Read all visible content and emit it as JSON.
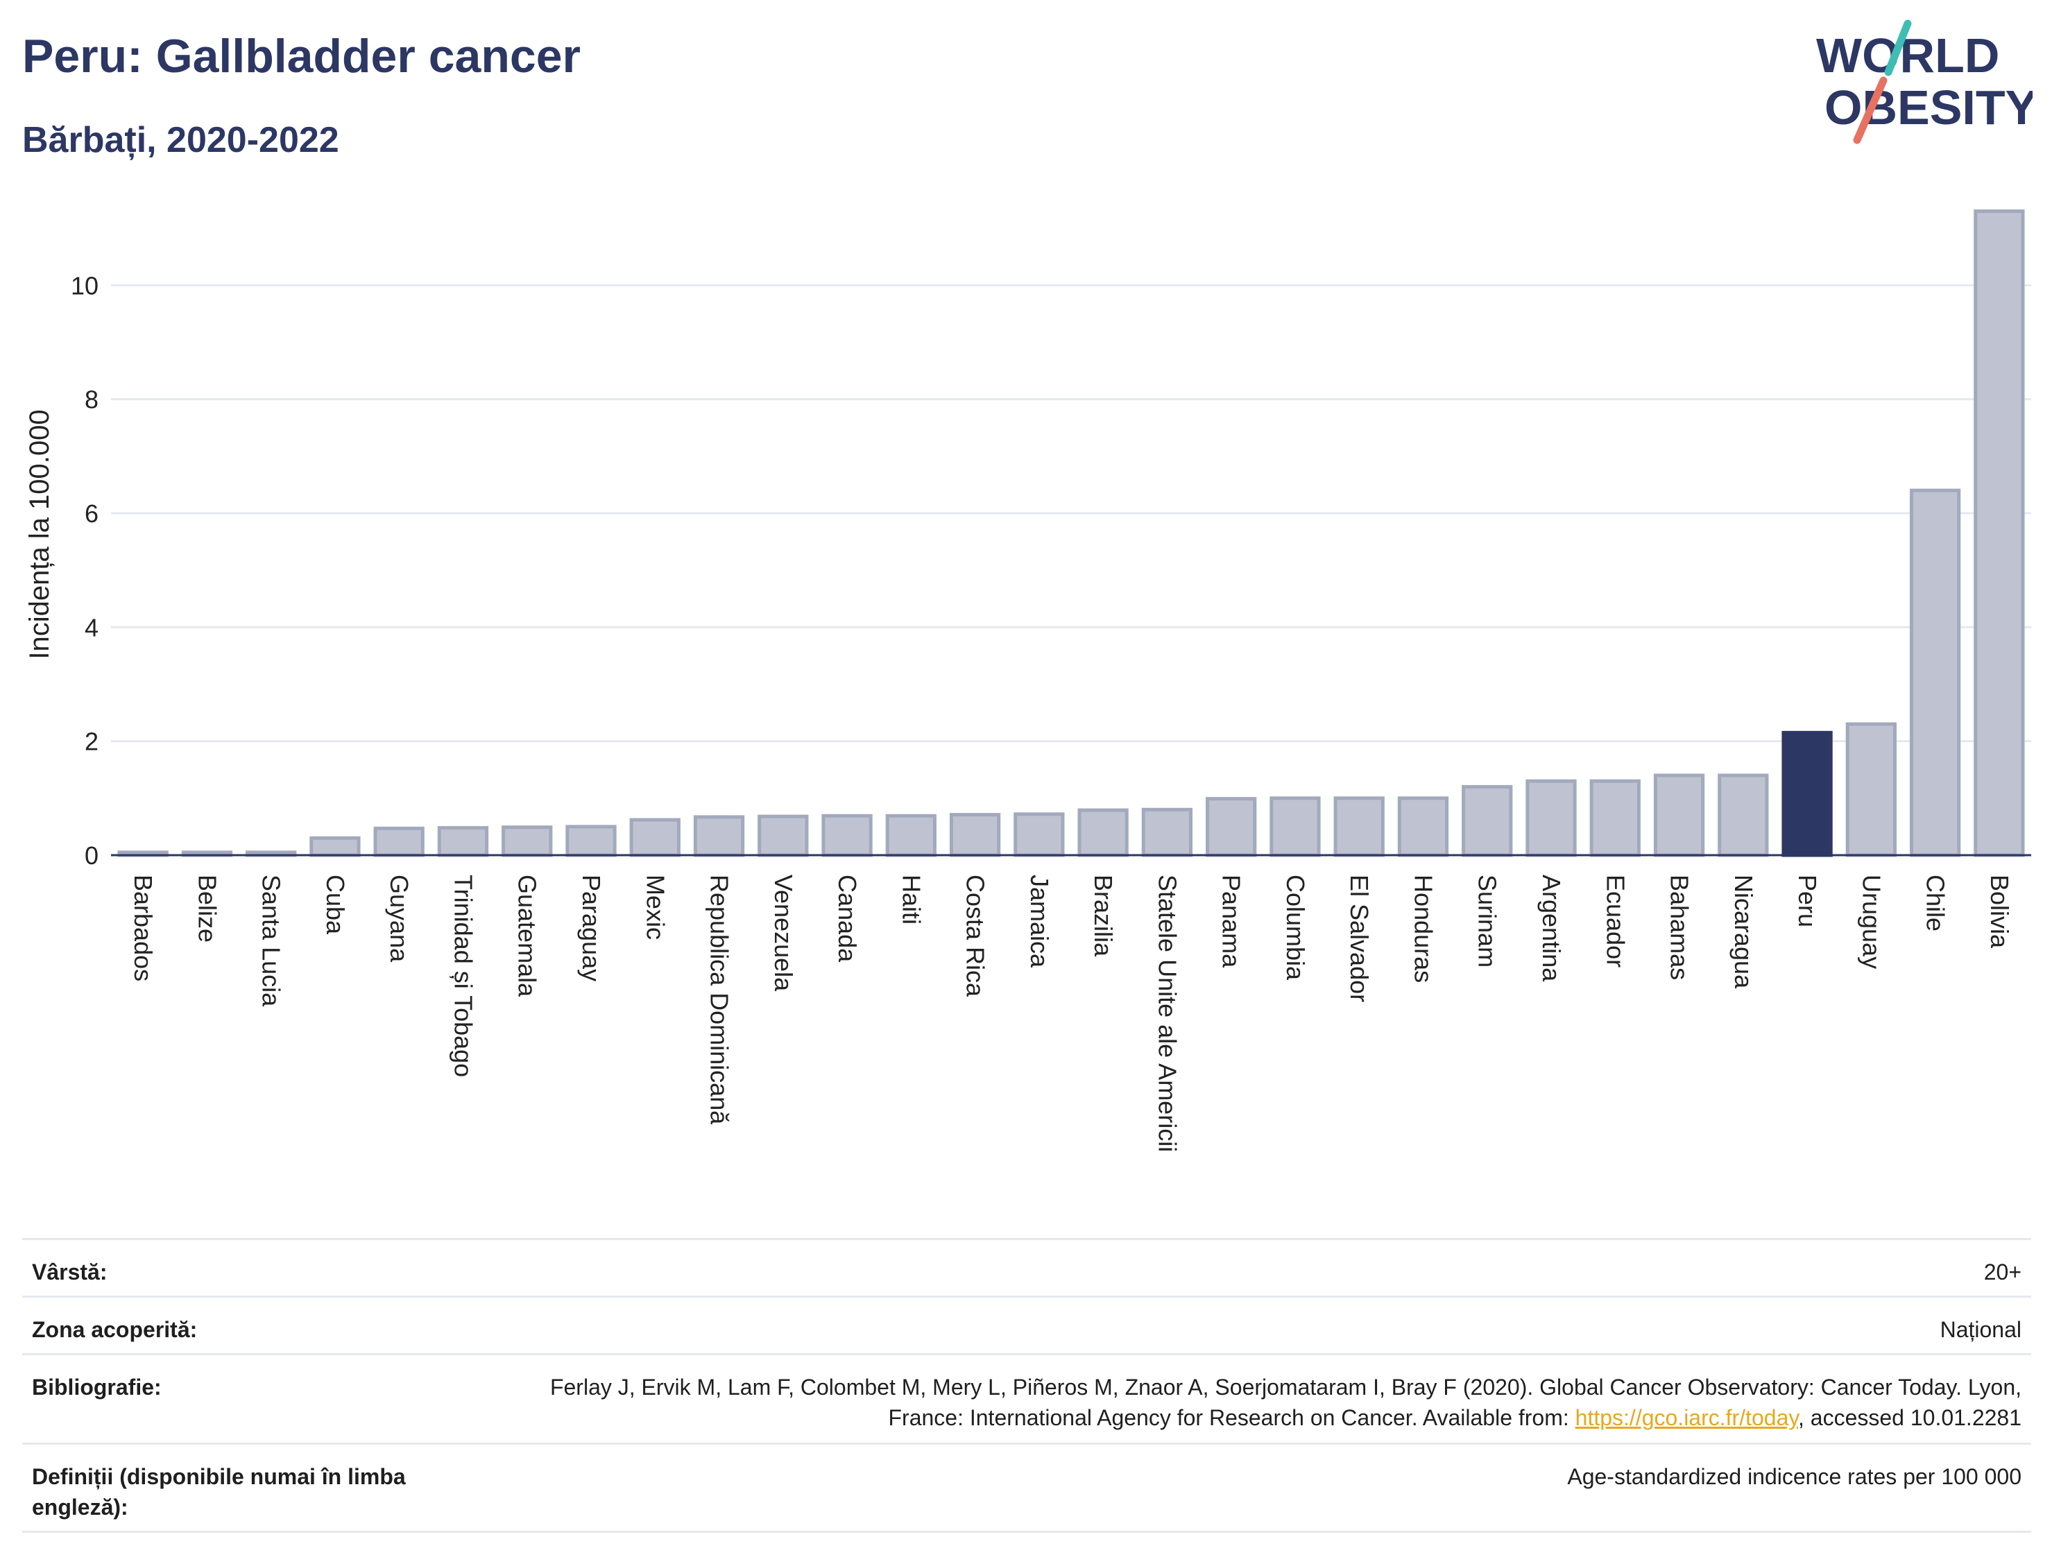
{
  "header": {
    "title": "Peru: Gallbladder cancer",
    "subtitle": "Bărbați, 2020-2022",
    "logo_text_line1": "WORLD",
    "logo_text_line2": "OBESITY"
  },
  "colors": {
    "bar_default": "#bfc3d1",
    "bar_default_stroke": "#a3a9bd",
    "bar_highlight": "#2c3764",
    "text_primary": "#2c3764",
    "logo_teal": "#3dbdb4",
    "logo_coral": "#e8715f",
    "link": "#e7a81e"
  },
  "chart_data": {
    "type": "bar",
    "title": "",
    "xlabel": "",
    "ylabel": "Incidența la 100.000",
    "ylim": [
      0,
      11.5
    ],
    "yticks": [
      0,
      2,
      4,
      6,
      8,
      10
    ],
    "grid": true,
    "highlight": "Peru",
    "categories": [
      "Barbados",
      "Belize",
      "Santa Lucia",
      "Cuba",
      "Guyana",
      "Trinidad și Tobago",
      "Guatemala",
      "Paraguay",
      "Mexic",
      "Republica Dominicană",
      "Venezuela",
      "Canada",
      "Haiti",
      "Costa Rica",
      "Jamaica",
      "Brazilia",
      "Statele Unite ale Americii",
      "Panama",
      "Columbia",
      "El Salvador",
      "Honduras",
      "Surinam",
      "Argentina",
      "Ecuador",
      "Bahamas",
      "Nicaragua",
      "Peru",
      "Uruguay",
      "Chile",
      "Bolivia"
    ],
    "values": [
      0.05,
      0.05,
      0.05,
      0.3,
      0.47,
      0.48,
      0.49,
      0.5,
      0.62,
      0.67,
      0.68,
      0.69,
      0.69,
      0.71,
      0.72,
      0.79,
      0.8,
      0.99,
      1.0,
      1.0,
      1.0,
      1.2,
      1.3,
      1.3,
      1.4,
      1.4,
      2.15,
      2.3,
      6.4,
      11.3
    ]
  },
  "meta": {
    "age_label": "Vârstă:",
    "age_value": "20+",
    "coverage_label": "Zona acoperită:",
    "coverage_value": "Național",
    "biblio_label": "Bibliografie:",
    "biblio_text_1": "Ferlay J, Ervik M, Lam F, Colombet M, Mery L, Piñeros M, Znaor A, Soerjomataram I, Bray F (2020). Global Cancer Observatory: Cancer Today. Lyon, France: International Agency for Research on Cancer. Available from: ",
    "biblio_link": "https://gco.iarc.fr/today",
    "biblio_text_2": ", accessed 10.01.2281",
    "definitions_label": "Definiții (disponibile numai în limba engleză):",
    "definitions_value": "Age-standardized indicence rates per 100 000"
  }
}
